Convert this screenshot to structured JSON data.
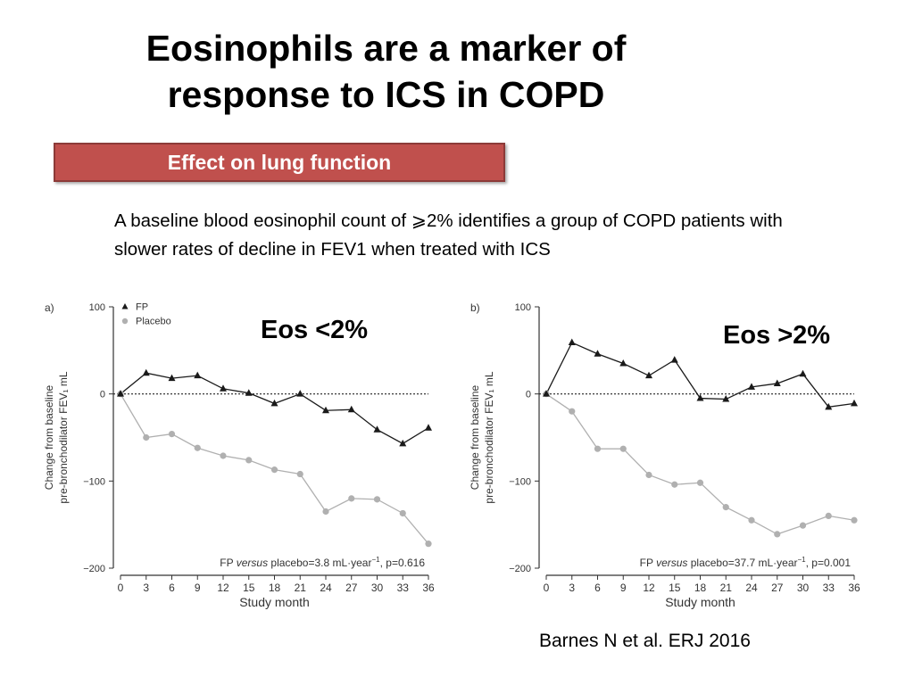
{
  "title": "Eosinophils are a marker of response to ICS in COPD",
  "banner": "Effect on lung function",
  "description": "A baseline blood eosinophil count of ⩾2% identifies a group of COPD patients with slower rates of decline in FEV1 when treated with ICS",
  "citation": "Barnes N et al. ERJ 2016",
  "colors": {
    "banner": "#c0504d",
    "fp": "#1a1a1a",
    "placebo": "#b0b0b0"
  },
  "chart_data": [
    {
      "type": "line",
      "panel": "a)",
      "label": "Eos <2%",
      "xlabel": "Study month",
      "ylabel": [
        "Change from baseline",
        "pre-bronchodilator FEV₁ mL"
      ],
      "x": [
        0,
        3,
        6,
        9,
        12,
        15,
        18,
        21,
        24,
        27,
        30,
        33,
        36
      ],
      "xlim": [
        0,
        36
      ],
      "ylim": [
        -200,
        100
      ],
      "yticks": [
        100,
        0,
        -100,
        -200
      ],
      "ytick_labels": [
        "100",
        "0",
        "−100",
        "−200"
      ],
      "annotation": {
        "pre": "FP ",
        "italic": "versus",
        "post": " placebo=3.8 mL·year",
        "sup": "−1",
        "tail": ", p=0.616"
      },
      "legend": "top-left",
      "series": [
        {
          "name": "FP",
          "marker": "triangle",
          "values": [
            0,
            24,
            18,
            21,
            6,
            1,
            -11,
            0,
            -19,
            -18,
            -41,
            -57,
            -39
          ]
        },
        {
          "name": "Placebo",
          "marker": "circle",
          "values": [
            0,
            -50,
            -46,
            -62,
            -71,
            -76,
            -87,
            -92,
            -135,
            -120,
            -121,
            -137,
            -172
          ]
        }
      ]
    },
    {
      "type": "line",
      "panel": "b)",
      "label": "Eos >2%",
      "xlabel": "Study month",
      "ylabel": [
        "Change from baseline",
        "pre-bronchodilator FEV₁ mL"
      ],
      "x": [
        0,
        3,
        6,
        9,
        12,
        15,
        18,
        21,
        24,
        27,
        30,
        33,
        36
      ],
      "xlim": [
        0,
        36
      ],
      "ylim": [
        -200,
        100
      ],
      "yticks": [
        100,
        0,
        -100,
        -200
      ],
      "ytick_labels": [
        "100",
        "0",
        "−100",
        "−200"
      ],
      "annotation": {
        "pre": "FP ",
        "italic": "versus",
        "post": " placebo=37.7 mL·year",
        "sup": "−1",
        "tail": ", p=0.001"
      },
      "series": [
        {
          "name": "FP",
          "marker": "triangle",
          "values": [
            0,
            59,
            46,
            35,
            21,
            39,
            -5,
            -6,
            8,
            12,
            23,
            -15,
            -11
          ]
        },
        {
          "name": "Placebo",
          "marker": "circle",
          "values": [
            0,
            -20,
            -63,
            -63,
            -93,
            -104,
            -102,
            -130,
            -145,
            -161,
            -151,
            -140,
            -145
          ]
        }
      ]
    }
  ]
}
